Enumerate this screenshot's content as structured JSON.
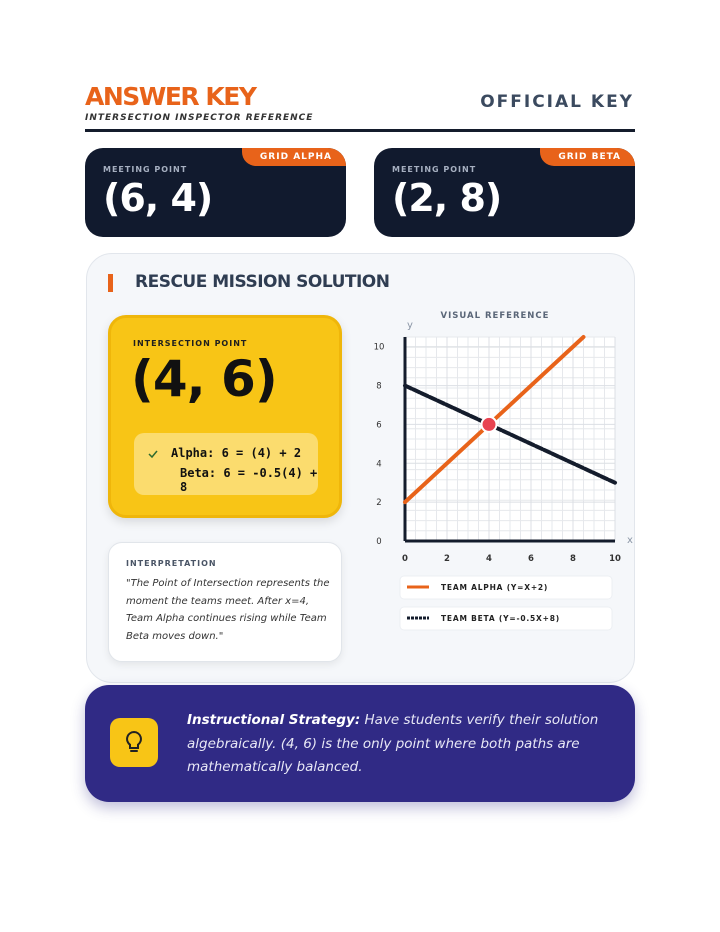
{
  "header": {
    "title": "ANSWER KEY",
    "subtitle": "INTERSECTION INSPECTOR REFERENCE",
    "badge": "OFFICIAL KEY"
  },
  "cards": [
    {
      "tag": "GRID ALPHA",
      "label": "MEETING POINT",
      "value": "(6, 4)"
    },
    {
      "tag": "GRID BETA",
      "label": "MEETING POINT",
      "value": "(2, 8)"
    }
  ],
  "solution": {
    "title": "RESCUE MISSION SOLUTION",
    "answer_label": "INTERSECTION POINT",
    "answer": "(4, 6)",
    "checks": [
      "Alpha: 6 = (4) + 2",
      "Beta: 6 = -0.5(4) + 8"
    ]
  },
  "interpretation": {
    "label": "INTERPRETATION",
    "text": "\"The Point of Intersection represents the moment the teams meet. After x=4, Team Alpha continues rising while Team Beta moves down.\""
  },
  "chart_data": {
    "type": "line",
    "title": "VISUAL REFERENCE",
    "x_label": "x",
    "y_label": "y",
    "xlim": [
      0,
      10
    ],
    "ylim": [
      0,
      10.5
    ],
    "xticks": [
      0,
      2,
      4,
      6,
      8,
      10
    ],
    "yticks": [
      0,
      2,
      4,
      6,
      8,
      10
    ],
    "grid": true,
    "series": [
      {
        "name": "TEAM ALPHA (Y=X+2)",
        "color": "#e8631a",
        "style": "solid",
        "x": [
          0,
          8.5
        ],
        "values": [
          2,
          10.5
        ]
      },
      {
        "name": "TEAM BETA (Y=-0.5X+8)",
        "color": "#141c2c",
        "style": "dashed",
        "x": [
          0,
          10
        ],
        "values": [
          8,
          3
        ]
      }
    ],
    "intersection": {
      "x": 4,
      "y": 6,
      "color": "#e84351"
    }
  },
  "strategy": {
    "label": "Instructional Strategy:",
    "text": "Have students verify their solution algebraically. (4, 6) is the only point where both paths are mathematically balanced."
  }
}
